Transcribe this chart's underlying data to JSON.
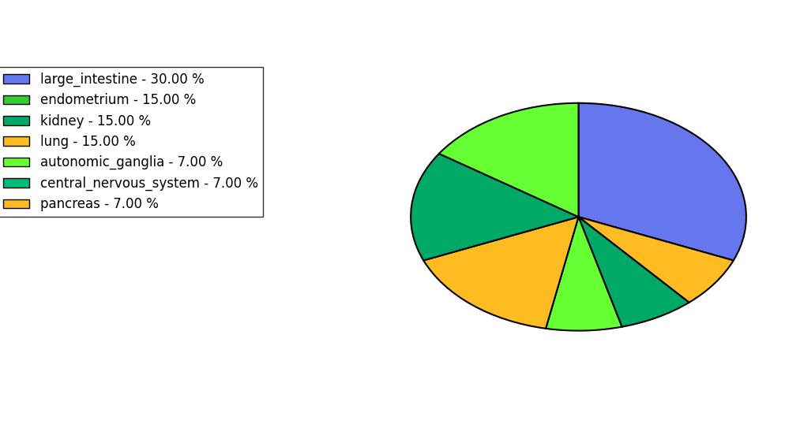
{
  "labels": [
    "large_intestine - 30.00 %",
    "endometrium - 15.00 %",
    "kidney - 15.00 %",
    "lung - 15.00 %",
    "autonomic_ganglia - 7.00 %",
    "central_nervous_system - 7.00 %",
    "pancreas - 7.00 %"
  ],
  "sizes": [
    30,
    15,
    15,
    15,
    7,
    7,
    7
  ],
  "legend_colors": [
    "#6677ee",
    "#33cc33",
    "#00aa66",
    "#ffbb22",
    "#66ff33",
    "#00bb77",
    "#ffbb22"
  ],
  "pie_order_sizes": [
    30,
    15,
    15,
    15,
    7,
    7,
    7
  ],
  "pie_order_colors": [
    "#6677ee",
    "#66ff33",
    "#00aa66",
    "#ffbb22",
    "#66ff33",
    "#00aa66",
    "#ffbb22"
  ],
  "startangle": 90,
  "counterclock": false,
  "figsize": [
    10.13,
    5.38
  ],
  "dpi": 100,
  "legend_fontsize": 12,
  "aspect_ratio": 0.68
}
